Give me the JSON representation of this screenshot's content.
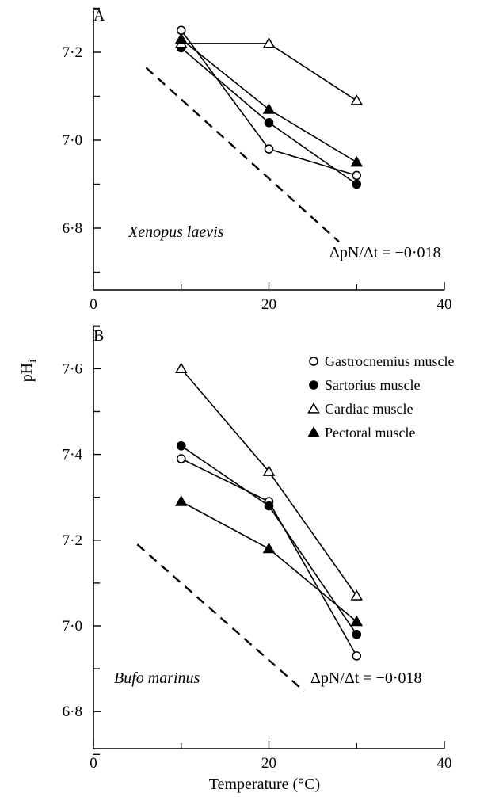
{
  "chart_data": [
    {
      "type": "line",
      "panel": "A",
      "species": "Xenopus laevis",
      "annotation": "ΔpN/Δt = −0·018",
      "reference_line": {
        "style": "dashed",
        "slope": -0.018,
        "x": [
          6,
          28
        ],
        "y": [
          7.165,
          6.769
        ]
      },
      "xlim": [
        0,
        40
      ],
      "ylim": [
        6.65,
        7.3
      ],
      "x_ticks": [
        "0",
        "20",
        "40"
      ],
      "y_ticks": [
        "7·2",
        "7·0",
        "6·8"
      ],
      "x": [
        10,
        20,
        30
      ],
      "series": [
        {
          "name": "Gastrocnemius muscle",
          "marker": "open-circle",
          "values": [
            7.25,
            6.98,
            6.92
          ]
        },
        {
          "name": "Sartorius muscle",
          "marker": "filled-circle",
          "values": [
            7.21,
            7.04,
            6.9
          ]
        },
        {
          "name": "Cardiac muscle",
          "marker": "open-triangle",
          "values": [
            7.22,
            7.22,
            7.09
          ]
        },
        {
          "name": "Pectoral muscle",
          "marker": "filled-triangle",
          "values": [
            7.23,
            7.07,
            6.95
          ]
        }
      ]
    },
    {
      "type": "line",
      "panel": "B",
      "species": "Bufo marinus",
      "annotation": "ΔpN/Δt = −0·018",
      "reference_line": {
        "style": "dashed",
        "slope": -0.018,
        "x": [
          5,
          24
        ],
        "y": [
          7.19,
          6.848
        ]
      },
      "xlim": [
        0,
        40
      ],
      "ylim": [
        6.75,
        7.72
      ],
      "x_ticks": [
        "0",
        "20",
        "40"
      ],
      "y_ticks": [
        "7·6",
        "7·4",
        "7·2",
        "7·0",
        "6·8"
      ],
      "x": [
        10,
        20,
        30
      ],
      "series": [
        {
          "name": "Gastrocnemius muscle",
          "marker": "open-circle",
          "values": [
            7.39,
            7.29,
            6.93
          ]
        },
        {
          "name": "Sartorius muscle",
          "marker": "filled-circle",
          "values": [
            7.42,
            7.28,
            6.98
          ]
        },
        {
          "name": "Cardiac muscle",
          "marker": "open-triangle",
          "values": [
            7.6,
            7.36,
            7.07
          ]
        },
        {
          "name": "Pectoral muscle",
          "marker": "filled-triangle",
          "values": [
            7.29,
            7.18,
            7.01
          ]
        }
      ],
      "legend": {
        "placement": "top-right"
      }
    }
  ],
  "labels": {
    "xlabel": "Temperature (°C)",
    "ylabel_main": "pH",
    "ylabel_sub": "i"
  }
}
